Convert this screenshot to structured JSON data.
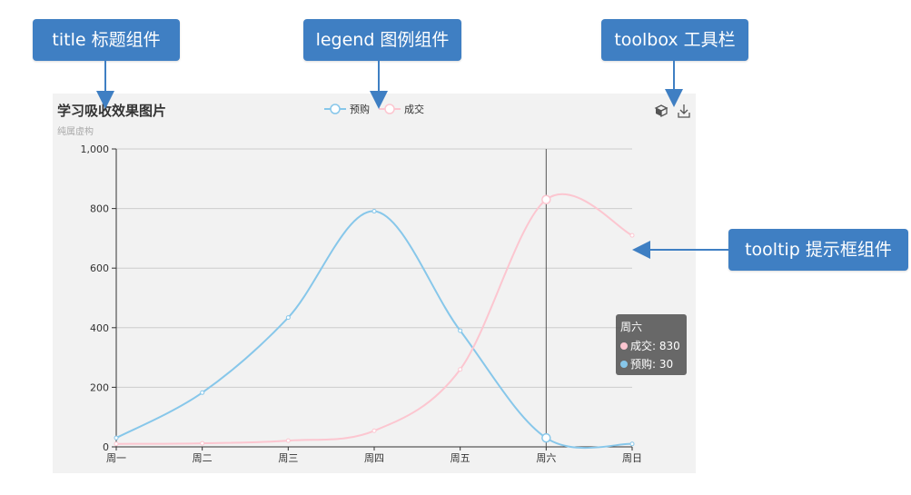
{
  "callouts": {
    "title": "title 标题组件",
    "legend": "legend 图例组件",
    "toolbox": "toolbox 工具栏",
    "tooltip": "tooltip 提示框组件"
  },
  "colors": {
    "callout_bg": "#3f7fc3",
    "panel_bg": "#f2f2f2",
    "series_preorder": "#87c7ea",
    "series_deal": "#fcc6d0",
    "axis": "#333333",
    "grid": "#cccccc"
  },
  "toolbox": {
    "icons": [
      "restore-icon",
      "download-icon"
    ]
  },
  "chart_data": {
    "type": "line",
    "title": "学习吸收效果图片",
    "subtitle": "纯属虚构",
    "categories": [
      "周一",
      "周二",
      "周三",
      "周四",
      "周五",
      "周六",
      "周日"
    ],
    "series": [
      {
        "name": "预购",
        "values": [
          30,
          182,
          434,
          791,
          390,
          30,
          10
        ],
        "smooth": true
      },
      {
        "name": "成交",
        "values": [
          10,
          12,
          21,
          54,
          260,
          830,
          710
        ],
        "smooth": true
      }
    ],
    "ylim": [
      0,
      1000
    ],
    "yticks": [
      0,
      200,
      400,
      600,
      800,
      1000
    ],
    "ytick_labels": [
      "0",
      "200",
      "400",
      "600",
      "800",
      "1,000"
    ],
    "grid": true,
    "legend_position": "top-center",
    "tooltip": {
      "category": "周六",
      "items": [
        {
          "name": "成交",
          "value": 830
        },
        {
          "name": "预购",
          "value": 30
        }
      ]
    }
  }
}
